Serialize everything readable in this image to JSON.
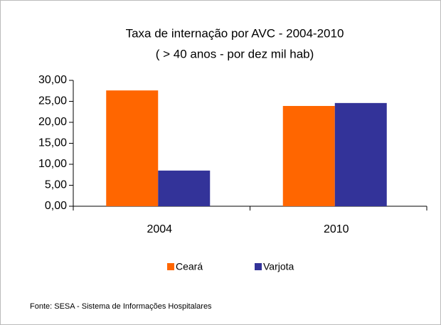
{
  "chart_data": {
    "type": "bar",
    "title": "Taxa de internação por AVC - 2004-2010",
    "subtitle": "( > 40 anos - por dez mil hab)",
    "categories": [
      "2004",
      "2010"
    ],
    "series": [
      {
        "name": "Ceará",
        "color": "#ff6600",
        "values": [
          27.6,
          23.9
        ]
      },
      {
        "name": "Varjota",
        "color": "#333399",
        "values": [
          8.5,
          24.6
        ]
      }
    ],
    "ylim": [
      0,
      30
    ],
    "yticks": [
      {
        "value": 0,
        "label": "0,00"
      },
      {
        "value": 5,
        "label": "5,00"
      },
      {
        "value": 10,
        "label": "10,00"
      },
      {
        "value": 15,
        "label": "15,00"
      },
      {
        "value": 20,
        "label": "20,00"
      },
      {
        "value": 25,
        "label": "25,00"
      },
      {
        "value": 30,
        "label": "30,00"
      }
    ],
    "grid": false,
    "legend": "bottom",
    "source": "Fonte: SESA - Sistema de Informações Hospitalares"
  }
}
